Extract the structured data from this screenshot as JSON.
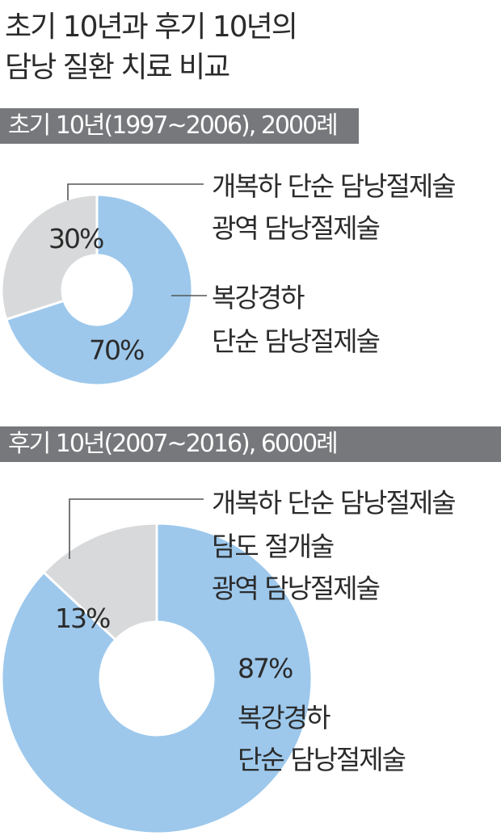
{
  "title": {
    "line1": "초기 10년과 후기 10년의",
    "line2": "담낭 질환 치료 비교"
  },
  "colors": {
    "blue": "#9dc8ec",
    "gray": "#d8d9da",
    "bar": "#77787b",
    "leader": "#555555"
  },
  "chart_data": [
    {
      "type": "pie",
      "title": "초기 10년(1997~2006), 2000례",
      "slices": [
        {
          "label": "복강경하\n단순 담낭절제술",
          "value": 70,
          "display": "70%",
          "color": "#9dc8ec"
        },
        {
          "label": "개복하 단순 담낭절제술\n광역 담낭절제술",
          "value": 30,
          "display": "30%",
          "color": "#d8d9da"
        }
      ]
    },
    {
      "type": "pie",
      "title": "후기 10년(2007~2016), 6000례",
      "slices": [
        {
          "label": "복강경하\n단순 담낭절제술",
          "value": 87,
          "display": "87%",
          "color": "#9dc8ec"
        },
        {
          "label": "개복하 단순 담낭절제술\n담도 절개술\n광역 담낭절제술",
          "value": 13,
          "display": "13%",
          "color": "#d8d9da"
        }
      ]
    }
  ],
  "labels": {
    "early_open": [
      "개복하 단순 담낭절제술",
      "광역 담낭절제술"
    ],
    "early_lap": [
      "복강경하",
      "단순 담낭절제술"
    ],
    "late_open": [
      "개복하 단순 담낭절제술",
      "담도 절개술",
      "광역 담낭절제술"
    ],
    "late_lap": [
      "복강경하",
      "단순 담낭절제술"
    ]
  }
}
